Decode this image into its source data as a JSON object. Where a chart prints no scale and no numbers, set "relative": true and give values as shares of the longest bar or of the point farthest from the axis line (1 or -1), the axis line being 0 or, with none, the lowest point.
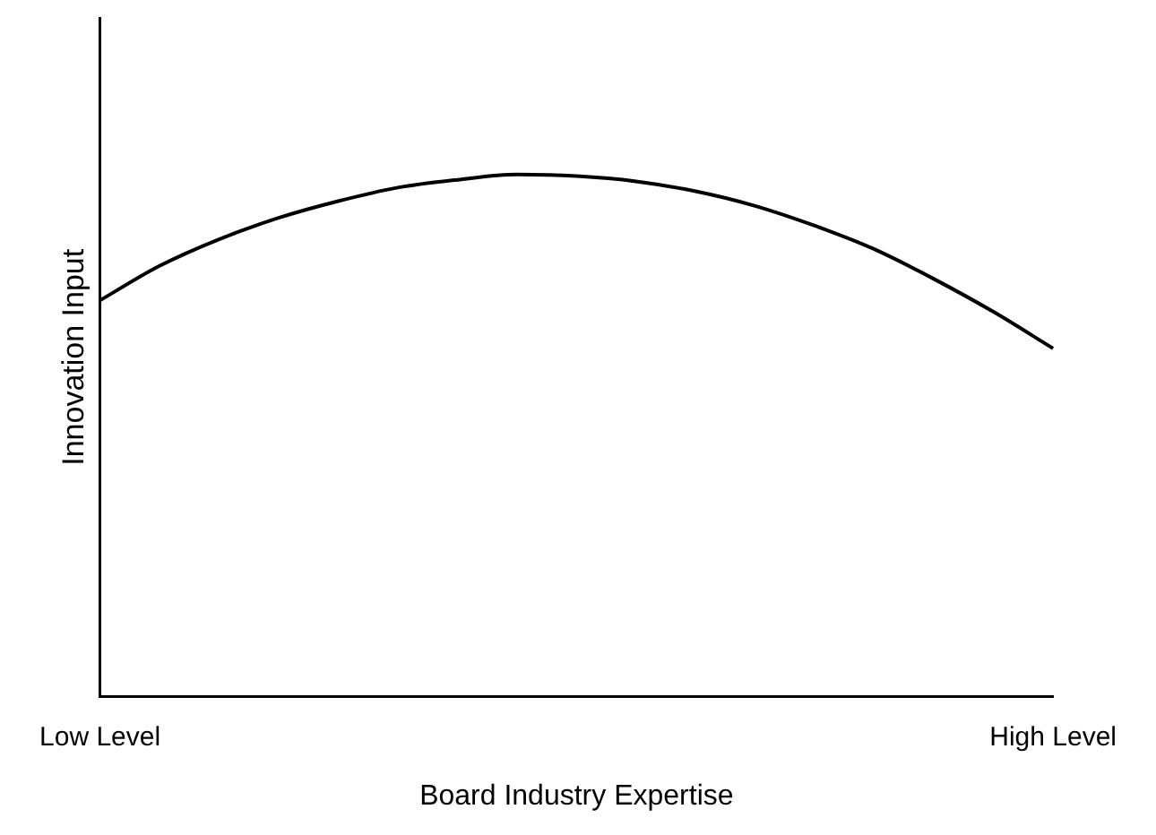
{
  "chart_data": {
    "type": "line",
    "relative": true,
    "xlabel": "Board Industry Expertise",
    "ylabel": "Innovation Input",
    "categories": [
      "Low Level",
      null,
      null,
      null,
      null,
      null,
      null,
      null,
      null,
      null,
      null,
      null,
      null,
      null,
      null,
      null,
      "High Level"
    ],
    "series": [
      {
        "color": "#000000",
        "values": [
          0.759,
          0.825,
          0.876,
          0.917,
          0.949,
          0.975,
          0.99,
          1,
          0.997,
          0.987,
          0.968,
          0.94,
          0.902,
          0.857,
          0.8,
          0.737,
          0.667
        ]
      }
    ],
    "grid": false,
    "legend": false,
    "marker": "none",
    "line_style": "solid"
  }
}
